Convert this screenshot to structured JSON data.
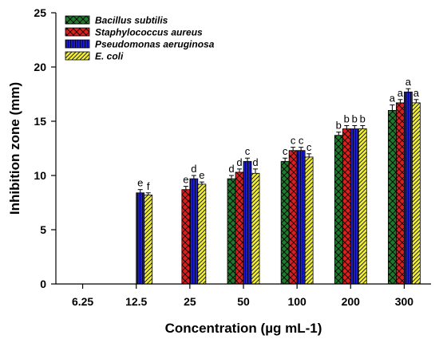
{
  "chart_data": {
    "type": "bar",
    "xlabel": "Concentration (µg mL-1)",
    "ylabel": "Inhibition zone (mm)",
    "ylim": [
      0,
      25
    ],
    "yticks": [
      0,
      5,
      10,
      15,
      20,
      25
    ],
    "categories": [
      "6.25",
      "12.5",
      "25",
      "50",
      "100",
      "200",
      "300"
    ],
    "legend_position": "top-left",
    "grid": false,
    "series": [
      {
        "name": "Bacillus subtilis",
        "color": "#1f7a2e",
        "pattern": "crosshatch",
        "values": [
          null,
          null,
          null,
          9.7,
          11.3,
          13.7,
          16.0
        ],
        "errors": [
          null,
          null,
          null,
          0.3,
          0.3,
          0.3,
          0.5
        ],
        "letters": [
          "",
          "",
          "",
          "d",
          "c",
          "b",
          "a"
        ]
      },
      {
        "name": "Staphylococcus aureus",
        "color": "#dd1e1e",
        "pattern": "crosshatch",
        "values": [
          null,
          null,
          8.7,
          10.3,
          12.3,
          14.3,
          16.7
        ],
        "errors": [
          null,
          null,
          0.3,
          0.3,
          0.3,
          0.3,
          0.3
        ],
        "letters": [
          "",
          "",
          "e",
          "d",
          "c",
          "b",
          "a"
        ]
      },
      {
        "name": "Pseudomonas aeruginosa",
        "color": "#1c1cc8",
        "pattern": "vertical",
        "values": [
          null,
          8.4,
          9.7,
          11.3,
          12.3,
          14.3,
          17.7
        ],
        "errors": [
          null,
          0.3,
          0.3,
          0.3,
          0.3,
          0.3,
          0.3
        ],
        "letters": [
          "",
          "e",
          "d",
          "c",
          "c",
          "b",
          "a"
        ]
      },
      {
        "name": "E. coli",
        "color": "#f0ee3a",
        "pattern": "diagonal",
        "values": [
          null,
          8.2,
          9.2,
          10.2,
          11.7,
          14.3,
          16.7
        ],
        "errors": [
          null,
          0.2,
          0.2,
          0.4,
          0.3,
          0.3,
          0.3
        ],
        "letters": [
          "",
          "f",
          "e",
          "d",
          "c",
          "b",
          "a"
        ]
      }
    ]
  }
}
